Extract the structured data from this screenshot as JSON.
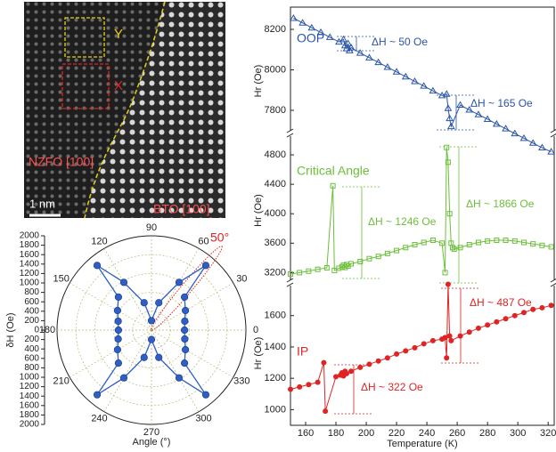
{
  "image": {
    "labels": {
      "y_region": "Y",
      "x_region": "X",
      "left_phase": "NZFO [100]",
      "right_phase": "BTO [100]",
      "scale_bar": "1 nm"
    }
  },
  "chart_data": [
    {
      "type": "polar",
      "xlabel": "Angle (°)",
      "ylabel": "δH (Oe)",
      "color": "#2f5fc4",
      "angles": [
        0,
        15,
        30,
        45,
        50,
        60,
        75,
        90,
        105,
        120,
        130,
        135,
        150,
        165,
        180,
        195,
        210,
        225,
        230,
        240,
        255,
        270,
        285,
        300,
        310,
        315,
        330,
        345
      ],
      "values": [
        700,
        730,
        830,
        990,
        1790,
        1170,
        600,
        200,
        600,
        1170,
        1790,
        990,
        830,
        730,
        700,
        730,
        830,
        990,
        1790,
        1170,
        600,
        200,
        600,
        1170,
        1790,
        990,
        830,
        730
      ],
      "rlim": [
        0,
        2000
      ],
      "rticks": [
        0,
        200,
        400,
        600,
        800,
        1000,
        1200,
        1400,
        1600,
        1800,
        2000
      ],
      "angle_ticks": [
        0,
        30,
        60,
        90,
        120,
        150,
        180,
        210,
        240,
        270,
        300,
        330
      ],
      "annotation": "50°"
    },
    {
      "type": "line",
      "xlabel": "Temperature (K)",
      "xlim": [
        150,
        324
      ],
      "xticks": [
        160,
        180,
        200,
        220,
        240,
        260,
        280,
        300,
        320
      ],
      "panels": [
        {
          "name": "OOP",
          "ylabel": "Hr (Oe)",
          "color": "#2a55a8",
          "marker": "triangle",
          "ylim": [
            7580,
            8310
          ],
          "yticks": [
            7800,
            8000,
            8200
          ],
          "x": [
            152,
            158,
            164,
            170,
            176,
            182,
            185,
            186,
            187,
            188,
            189,
            190,
            196,
            202,
            208,
            214,
            220,
            226,
            232,
            238,
            244,
            250,
            253,
            254,
            255,
            256,
            262,
            268,
            274,
            280,
            286,
            292,
            298,
            304,
            310,
            316,
            322
          ],
          "values": [
            8255,
            8232,
            8208,
            8185,
            8161,
            8138,
            8150,
            8120,
            8105,
            8130,
            8095,
            8110,
            8083,
            8060,
            8037,
            8013,
            7990,
            7966,
            7943,
            7920,
            7896,
            7873,
            7880,
            7810,
            7760,
            7720,
            7826,
            7802,
            7779,
            7756,
            7732,
            7709,
            7685,
            7662,
            7638,
            7615,
            7595
          ],
          "annotations": [
            "ΔH ~ 50 Oe",
            "ΔH ~ 165 Oe"
          ]
        },
        {
          "name": "Critical Angle",
          "ylabel": "Hr (Oe)",
          "color": "#6cbf3a",
          "marker": "square",
          "ylim": [
            3060,
            5030
          ],
          "yticks": [
            3200,
            3600,
            4000,
            4400,
            4800
          ],
          "x": [
            150,
            156,
            162,
            168,
            174,
            178,
            179,
            182,
            184,
            185,
            186,
            187,
            188,
            190,
            196,
            202,
            208,
            214,
            220,
            226,
            232,
            238,
            244,
            250,
            252,
            253,
            254,
            255,
            256,
            257,
            258,
            262,
            268,
            274,
            280,
            286,
            292,
            298,
            304,
            310,
            316,
            322
          ],
          "values": [
            3180,
            3200,
            3220,
            3245,
            3265,
            4380,
            3230,
            3260,
            3280,
            3300,
            3270,
            3310,
            3290,
            3320,
            3350,
            3390,
            3420,
            3460,
            3500,
            3540,
            3580,
            3610,
            3640,
            3600,
            3200,
            4900,
            4700,
            4000,
            3600,
            3540,
            3520,
            3540,
            3580,
            3610,
            3630,
            3640,
            3640,
            3630,
            3610,
            3590,
            3570,
            3550
          ],
          "annotations": [
            "ΔH ~ 1246 Oe",
            "ΔH ~ 1866 Oe"
          ]
        },
        {
          "name": "IP",
          "ylabel": "Hr (Oe)",
          "color": "#e02323",
          "marker": "circle",
          "ylim": [
            900,
            1820
          ],
          "yticks": [
            1000,
            1200,
            1400,
            1600
          ],
          "x": [
            150,
            156,
            162,
            168,
            172,
            173,
            180,
            183,
            184,
            185,
            186,
            187,
            190,
            196,
            202,
            208,
            214,
            220,
            226,
            232,
            238,
            244,
            250,
            252,
            253,
            254,
            255,
            256,
            262,
            268,
            274,
            280,
            286,
            292,
            298,
            304,
            310,
            316,
            322
          ],
          "values": [
            1130,
            1145,
            1160,
            1175,
            1300,
            990,
            1210,
            1220,
            1235,
            1215,
            1245,
            1230,
            1245,
            1270,
            1290,
            1310,
            1330,
            1355,
            1375,
            1395,
            1420,
            1440,
            1450,
            1460,
            1330,
            1800,
            1470,
            1440,
            1470,
            1495,
            1520,
            1540,
            1560,
            1580,
            1600,
            1620,
            1640,
            1650,
            1665
          ],
          "annotations": [
            "ΔH ~ 487 Oe",
            "ΔH ~ 322 Oe"
          ]
        }
      ]
    }
  ]
}
